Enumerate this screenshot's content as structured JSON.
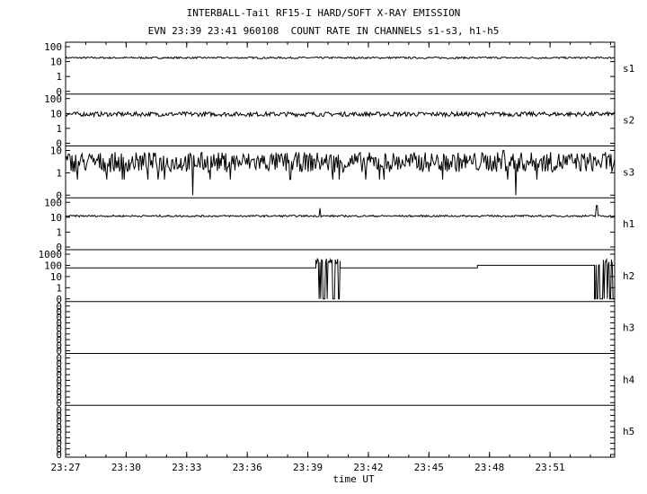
{
  "title_line1": "INTERBALL-Tail RF15-I HARD/SOFT X-RAY EMISSION",
  "title_line2": "EVN 23:39 23:41 960108  COUNT RATE IN CHANNELS s1-s3, h1-h5",
  "chart_data": {
    "type": "line",
    "title": "INTERBALL-Tail RF15-I HARD/SOFT X-RAY EMISSION",
    "subtitle": "EVN 23:39 23:41 960108  COUNT RATE IN CHANNELS s1-s3, h1-h5",
    "xlabel": "time UT",
    "x_ticks": [
      "23:27",
      "23:30",
      "23:33",
      "23:36",
      "23:39",
      "23:42",
      "23:45",
      "23:48",
      "23:51"
    ],
    "xlim_minutes": [
      0,
      27.2
    ],
    "y_scale": "log",
    "panels": [
      {
        "name": "s1",
        "ytick_labels": [
          "100",
          "10",
          "1",
          "0"
        ],
        "baseline": 18,
        "noise": 0.12,
        "spikes": []
      },
      {
        "name": "s2",
        "ytick_labels": [
          "100",
          "10",
          "1",
          "0"
        ],
        "baseline": 9,
        "noise": 0.3,
        "spikes": []
      },
      {
        "name": "s3",
        "ytick_labels": [
          "10",
          "1",
          "0"
        ],
        "baseline": 3,
        "noise": 0.9,
        "spikes": [
          {
            "t": 6.3,
            "value": 0
          },
          {
            "t": 22.3,
            "value": 0
          },
          {
            "t": 21.7,
            "value": 30
          }
        ]
      },
      {
        "name": "h1",
        "ytick_labels": [
          "100",
          "10",
          "1",
          "0"
        ],
        "baseline": 12,
        "noise": 0.12,
        "spikes": [
          {
            "t": 12.6,
            "value": 40
          },
          {
            "t": 26.3,
            "value": 60
          }
        ]
      },
      {
        "name": "h2",
        "ytick_labels": [
          "1000",
          "100",
          "10",
          "1",
          "0"
        ],
        "steps": [
          {
            "t0": 0,
            "t1": 12.4,
            "value": 60
          },
          {
            "t0": 12.4,
            "t1": 13.6,
            "value": "burst"
          },
          {
            "t0": 13.6,
            "t1": 20.4,
            "value": 60
          },
          {
            "t0": 20.4,
            "t1": 26.2,
            "value": 100
          },
          {
            "t0": 26.2,
            "t1": 27.2,
            "value": "burst"
          }
        ]
      },
      {
        "name": "h3",
        "ytick_labels": [
          "0",
          "0",
          "0",
          "0",
          "0",
          "0",
          "0",
          "0",
          "0"
        ],
        "empty": true
      },
      {
        "name": "h4",
        "ytick_labels": [
          "0",
          "0",
          "0",
          "0",
          "0",
          "0",
          "0",
          "0",
          "0"
        ],
        "empty": true
      },
      {
        "name": "h5",
        "ytick_labels": [
          "0",
          "0",
          "0",
          "0",
          "0",
          "0",
          "0",
          "0",
          "0"
        ],
        "empty": true
      }
    ],
    "grid": false,
    "color": "#000000"
  }
}
